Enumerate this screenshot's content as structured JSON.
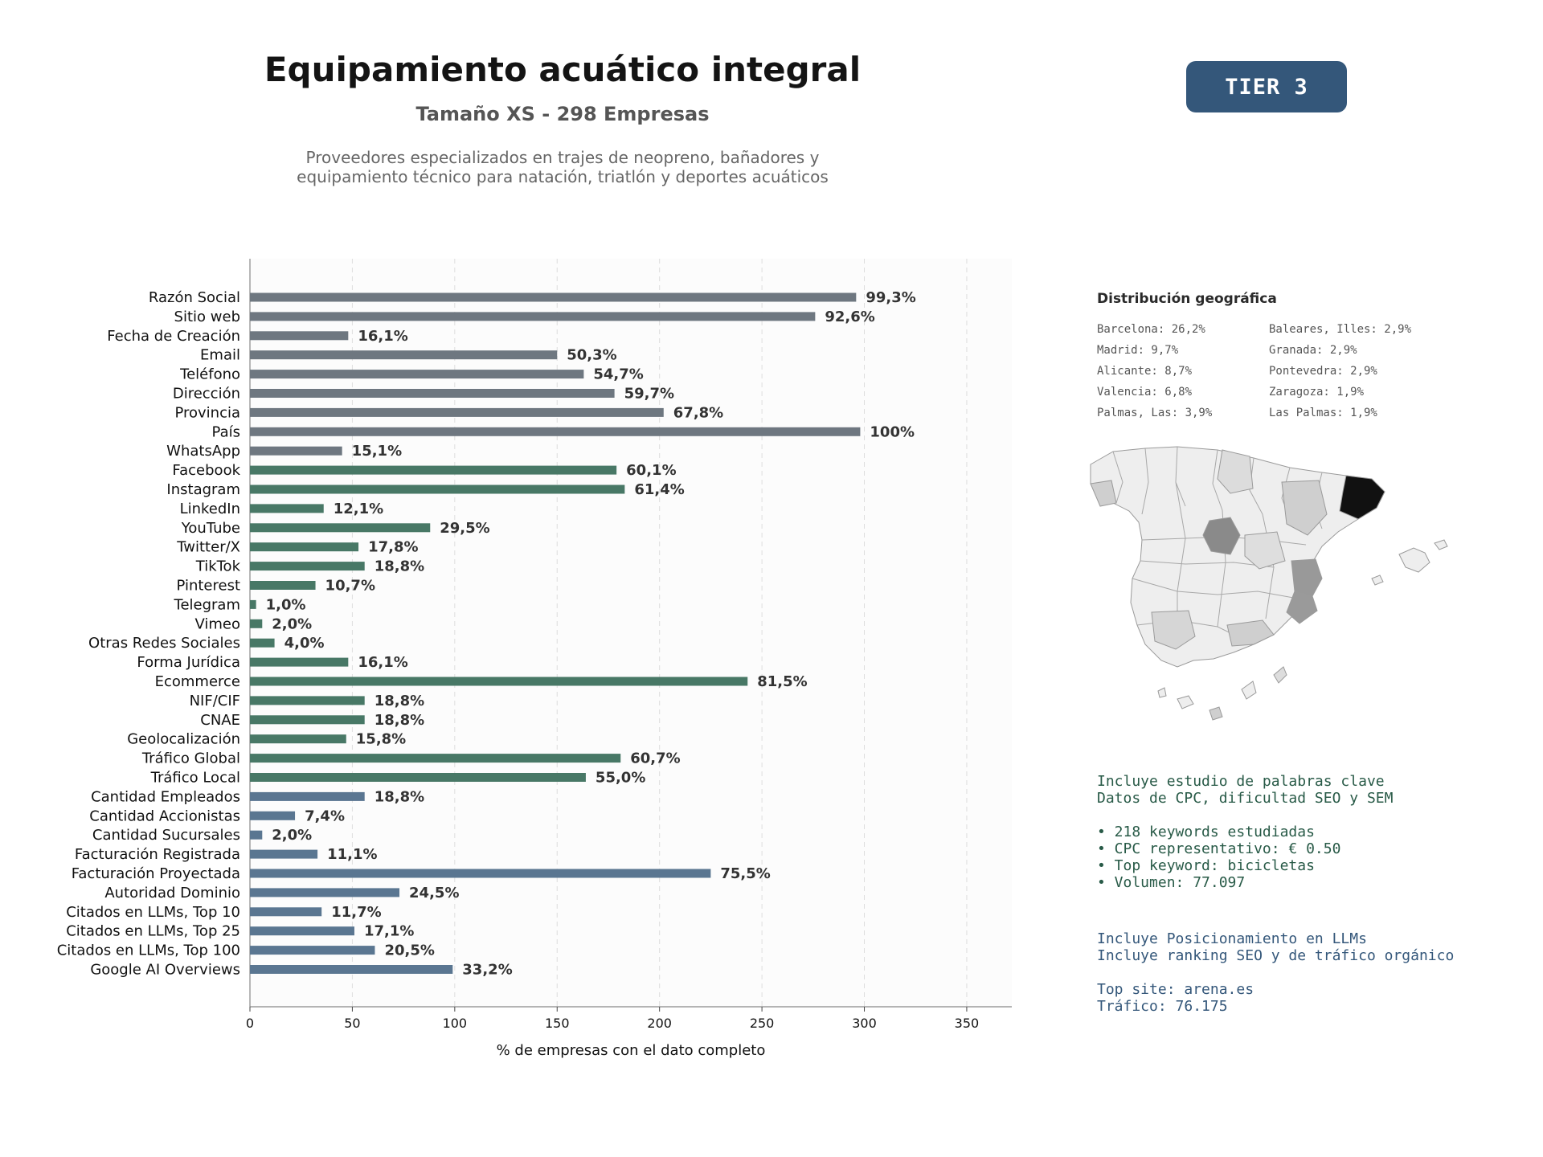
{
  "header": {
    "title": "Equipamiento acuático integral",
    "subtitle": "Tamaño XS - 298 Empresas",
    "description": "Proveedores especializados en trajes de neopreno, bañadores y\nequipamiento técnico para natación, triatlón y deportes acuáticos",
    "tier_label": "TIER 3"
  },
  "colors": {
    "grey_bars": "#6e7780",
    "green_bars": "#487866",
    "blue_bars": "#5a7691",
    "badge": "#34577a",
    "kw_text": "#285a47",
    "llm_text": "#34577a"
  },
  "chart_data": {
    "type": "bar",
    "orientation": "horizontal",
    "xlabel": "% de empresas con el dato completo",
    "xlim": [
      0,
      372
    ],
    "xticks": [
      0,
      50,
      100,
      150,
      200,
      250,
      300,
      350
    ],
    "grid": "vertical dashed",
    "categories": [
      "Razón Social",
      "Sitio web",
      "Fecha de Creación",
      "Email",
      "Teléfono",
      "Dirección",
      "Provincia",
      "País",
      "WhatsApp",
      "Facebook",
      "Instagram",
      "LinkedIn",
      "YouTube",
      "Twitter/X",
      "TikTok",
      "Pinterest",
      "Telegram",
      "Vimeo",
      "Otras Redes Sociales",
      "Forma Jurídica",
      "Ecommerce",
      "NIF/CIF",
      "CNAE",
      "Geolocalización",
      "Tráfico Global",
      "Tráfico Local",
      "Cantidad Empleados",
      "Cantidad Accionistas",
      "Cantidad Sucursales",
      "Facturación Registrada",
      "Facturación Proyectada",
      "Autoridad Dominio",
      "Citados en LLMs, Top 10",
      "Citados en LLMs, Top 25",
      "Citados en LLMs, Top 100",
      "Google AI Overviews"
    ],
    "values": [
      296,
      276,
      48,
      150,
      163,
      178,
      202,
      298,
      45,
      179,
      183,
      36,
      88,
      53,
      56,
      32,
      3,
      6,
      12,
      48,
      243,
      56,
      56,
      47,
      181,
      164,
      56,
      22,
      6,
      33,
      225,
      73,
      35,
      51,
      61,
      99
    ],
    "labels": [
      "99,3%",
      "92,6%",
      "16,1%",
      "50,3%",
      "54,7%",
      "59,7%",
      "67,8%",
      "100%",
      "15,1%",
      "60,1%",
      "61,4%",
      "12,1%",
      "29,5%",
      "17,8%",
      "18,8%",
      "10,7%",
      "1,0%",
      "2,0%",
      "4,0%",
      "16,1%",
      "81,5%",
      "18,8%",
      "18,8%",
      "15,8%",
      "60,7%",
      "55,0%",
      "18,8%",
      "7,4%",
      "2,0%",
      "11,1%",
      "75,5%",
      "24,5%",
      "11,7%",
      "17,1%",
      "20,5%",
      "33,2%"
    ],
    "groups": [
      "grey",
      "grey",
      "grey",
      "grey",
      "grey",
      "grey",
      "grey",
      "grey",
      "grey",
      "green",
      "green",
      "green",
      "green",
      "green",
      "green",
      "green",
      "green",
      "green",
      "green",
      "green",
      "green",
      "green",
      "green",
      "green",
      "green",
      "green",
      "blue",
      "blue",
      "blue",
      "blue",
      "blue",
      "blue",
      "blue",
      "blue",
      "blue",
      "blue"
    ]
  },
  "geo": {
    "title": "Distribución geográfica",
    "items": [
      "Barcelona: 26,2%",
      "Baleares, Illes: 2,9%",
      "Madrid: 9,7%",
      "Granada: 2,9%",
      "Alicante: 8,7%",
      "Pontevedra: 2,9%",
      "Valencia: 6,8%",
      "Zaragoza: 1,9%",
      "Palmas, Las: 3,9%",
      "Las Palmas: 1,9%"
    ]
  },
  "keywords": {
    "line1": "Incluye estudio de palabras clave",
    "line2": "Datos de CPC, dificultad SEO y SEM",
    "bullet1": "• 218 keywords estudiadas",
    "bullet2": "• CPC representativo: € 0.50",
    "bullet3": "• Top keyword: bicicletas",
    "bullet4": "• Volumen: 77.097"
  },
  "llm": {
    "line1": "Incluye Posicionamiento en LLMs",
    "line2": "Incluye ranking SEO y de tráfico orgánico",
    "site": "Top site: arena.es",
    "traffic": "Tráfico: 76.175"
  }
}
